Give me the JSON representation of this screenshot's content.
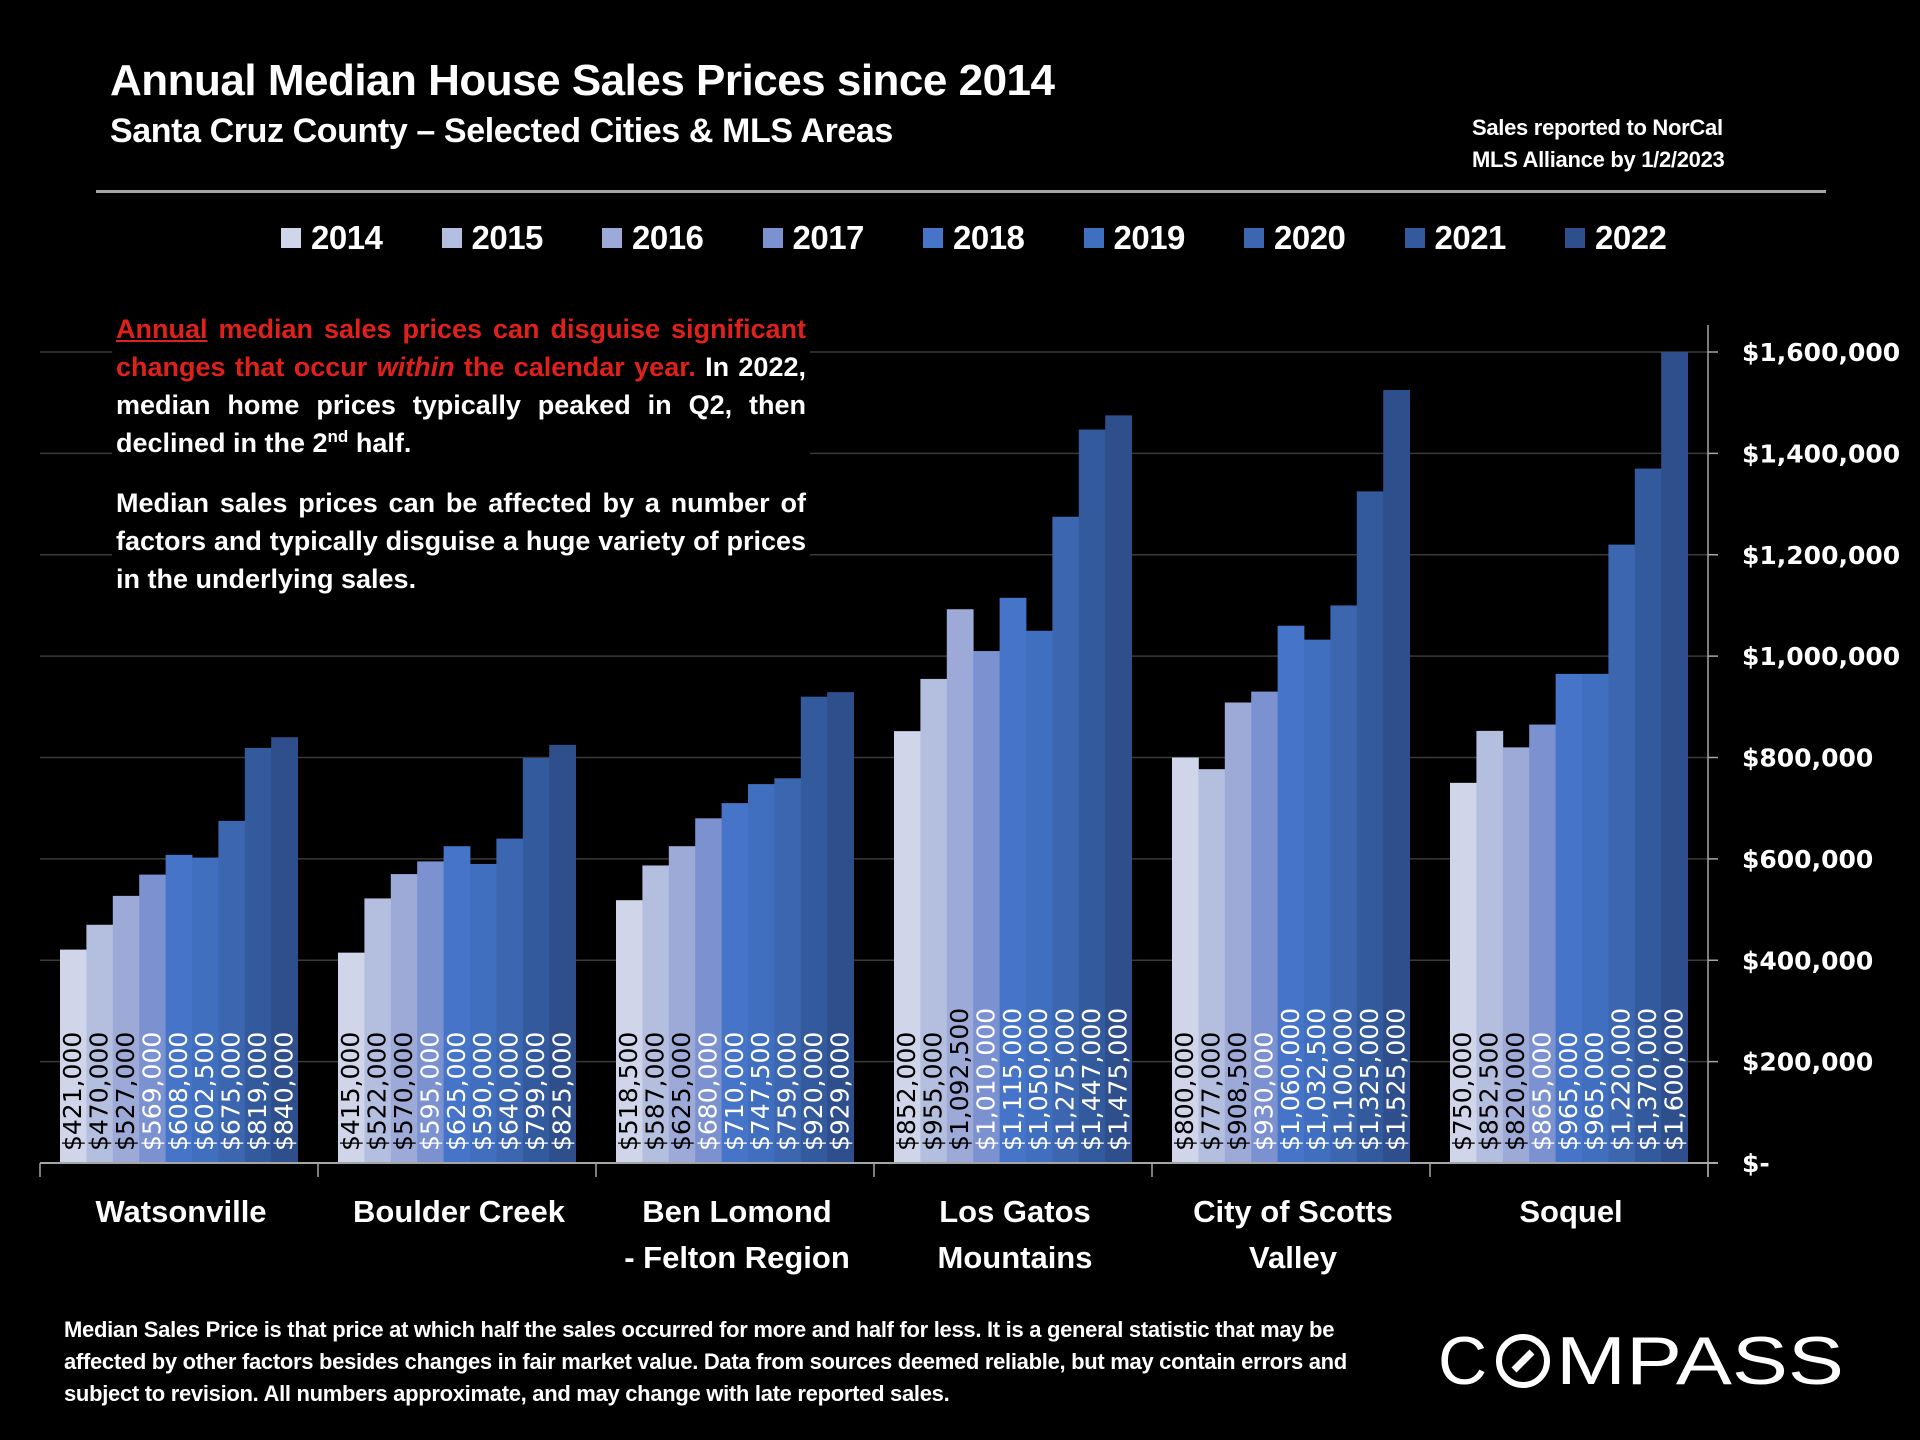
{
  "header": {
    "title": "Annual Median House Sales Prices since 2014",
    "subtitle": "Santa Cruz County – Selected Cities & MLS Areas",
    "source_line1": "Sales reported to NorCal",
    "source_line2": "MLS Alliance by 1/2/2023"
  },
  "note": {
    "p1_red_underlined": "Annual",
    "p1_red_a": " median sales prices can disguise significant changes that occur ",
    "p1_red_italic": "within",
    "p1_red_b": " the calendar year.",
    "p1_white": " In 2022, median home prices typically peaked in Q2, then declined in the 2",
    "p1_sup": "nd",
    "p1_end": " half.",
    "p2": "Median sales prices can be affected by a number of factors and typically disguise a huge variety of prices in the underlying sales."
  },
  "footer": {
    "disclaimer": "Median Sales Price is that price at which half the sales occurred for more and half for less. It is a general statistic that may be affected by other factors besides changes in fair market value. Data from sources deemed reliable, but may contain errors and subject to revision.  All numbers approximate, and may change with late reported sales.",
    "logo_text": "COMPASS",
    "logo_icon": "compass-slashed-o-icon"
  },
  "chart_data": {
    "type": "bar",
    "title": "Annual Median House Sales Prices since 2014",
    "subtitle": "Santa Cruz County – Selected Cities & MLS Areas",
    "xlabel": "",
    "ylabel": "",
    "ylim": [
      0,
      1600000
    ],
    "yticks": [
      0,
      200000,
      400000,
      600000,
      800000,
      1000000,
      1200000,
      1400000,
      1600000
    ],
    "ytick_labels": [
      "$-",
      "$200,000",
      "$400,000",
      "$600,000",
      "$800,000",
      "$1,000,000",
      "$1,200,000",
      "$1,400,000",
      "$1,600,000"
    ],
    "y_axis_side": "right",
    "grid": true,
    "legend_position": "top",
    "categories": [
      [
        "Watsonville"
      ],
      [
        "Boulder Creek"
      ],
      [
        "Ben Lomond",
        "- Felton Region"
      ],
      [
        "Los Gatos",
        "Mountains"
      ],
      [
        "City of Scotts",
        "Valley"
      ],
      [
        "Soquel"
      ]
    ],
    "series": [
      {
        "name": "2014",
        "color": "#d0d5ea",
        "label_color": "#000000",
        "values": [
          421000,
          415000,
          518500,
          852000,
          800000,
          750000
        ],
        "labels": [
          "$421,000",
          "$415,000",
          "$518,500",
          "$852,000",
          "$800,000",
          "$750,000"
        ]
      },
      {
        "name": "2015",
        "color": "#b4bfe0",
        "label_color": "#000000",
        "values": [
          470000,
          522000,
          587000,
          955000,
          777000,
          852500
        ],
        "labels": [
          "$470,000",
          "$522,000",
          "$587,000",
          "$955,000",
          "$777,000",
          "$852,500"
        ]
      },
      {
        "name": "2016",
        "color": "#9daad8",
        "label_color": "#000000",
        "values": [
          527000,
          570000,
          625000,
          1092500,
          908500,
          820000
        ],
        "labels": [
          "$527,000",
          "$570,000",
          "$625,000",
          "$1,092,500",
          "$908,500",
          "$820,000"
        ]
      },
      {
        "name": "2017",
        "color": "#7c92d0",
        "label_color": "#ffffff",
        "values": [
          569000,
          595000,
          680000,
          1010000,
          930000,
          865000
        ],
        "labels": [
          "$569,000",
          "$595,000",
          "$680,000",
          "$1,010,000",
          "$930,000",
          "$865,000"
        ]
      },
      {
        "name": "2018",
        "color": "#4674c8",
        "label_color": "#ffffff",
        "values": [
          608000,
          625000,
          710000,
          1115000,
          1060000,
          965000
        ],
        "labels": [
          "$608,000",
          "$625,000",
          "$710,000",
          "$1,115,000",
          "$1,060,000",
          "$965,000"
        ]
      },
      {
        "name": "2019",
        "color": "#416fc0",
        "label_color": "#ffffff",
        "values": [
          602500,
          590000,
          747500,
          1050000,
          1032500,
          965000
        ],
        "labels": [
          "$602,500",
          "$590,000",
          "$747,500",
          "$1,050,000",
          "$1,032,500",
          "$965,000"
        ]
      },
      {
        "name": "2020",
        "color": "#3c66b0",
        "label_color": "#ffffff",
        "values": [
          675000,
          640000,
          759000,
          1275000,
          1100000,
          1220000
        ],
        "labels": [
          "$675,000",
          "$640,000",
          "$759,000",
          "$1,275,000",
          "$1,100,000",
          "$1,220,000"
        ]
      },
      {
        "name": "2021",
        "color": "#345a9e",
        "label_color": "#ffffff",
        "values": [
          819000,
          799000,
          920000,
          1447000,
          1325000,
          1370000
        ],
        "labels": [
          "$819,000",
          "$799,000",
          "$920,000",
          "$1,447,000",
          "$1,325,000",
          "$1,370,000"
        ]
      },
      {
        "name": "2022",
        "color": "#2e4f8c",
        "label_color": "#ffffff",
        "values": [
          840000,
          825000,
          929000,
          1475000,
          1525000,
          1600000
        ],
        "labels": [
          "$840,000",
          "$825,000",
          "$929,000",
          "$1,475,000",
          "$1,525,000",
          "$1,600,000"
        ]
      }
    ]
  }
}
